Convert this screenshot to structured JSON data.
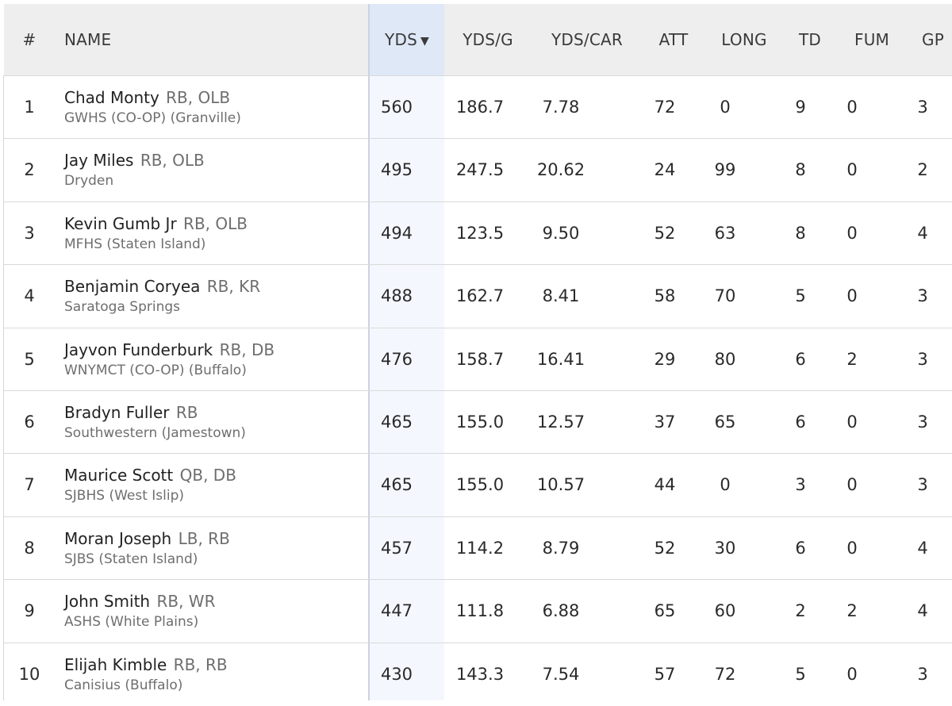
{
  "table": {
    "columns": {
      "rank": "#",
      "name": "NAME",
      "yds": "YDS",
      "yds_sort_icon": "▼",
      "yds_per_game": "YDS/G",
      "yds_per_carry": "YDS/CAR",
      "att": "ATT",
      "long": "LONG",
      "td": "TD",
      "fum": "FUM",
      "gp": "GP"
    },
    "sort": {
      "column": "YDS",
      "direction": "descending",
      "icon": "triangle-down-icon"
    },
    "colors": {
      "header_bg": "#eeeeee",
      "sorted_column_bg": "#f4f8fe",
      "sorted_header_bg": "#dfe8f7",
      "secondary_text": "#6e6e6e"
    },
    "rows": [
      {
        "rank": "1",
        "name": "Chad Monty",
        "positions": "RB, OLB",
        "school": "GWHS (CO-OP) (Granville)",
        "yds": "560",
        "yds_g": "186.7",
        "yds_car": "7.78",
        "att": "72",
        "long": "0",
        "td": "9",
        "fum": "0",
        "gp": "3"
      },
      {
        "rank": "2",
        "name": "Jay Miles",
        "positions": "RB, OLB",
        "school": "Dryden",
        "yds": "495",
        "yds_g": "247.5",
        "yds_car": "20.62",
        "att": "24",
        "long": "99",
        "td": "8",
        "fum": "0",
        "gp": "2"
      },
      {
        "rank": "3",
        "name": "Kevin Gumb Jr",
        "positions": "RB, OLB",
        "school": "MFHS (Staten Island)",
        "yds": "494",
        "yds_g": "123.5",
        "yds_car": "9.50",
        "att": "52",
        "long": "63",
        "td": "8",
        "fum": "0",
        "gp": "4"
      },
      {
        "rank": "4",
        "name": "Benjamin Coryea",
        "positions": "RB, KR",
        "school": "Saratoga Springs",
        "yds": "488",
        "yds_g": "162.7",
        "yds_car": "8.41",
        "att": "58",
        "long": "70",
        "td": "5",
        "fum": "0",
        "gp": "3"
      },
      {
        "rank": "5",
        "name": "Jayvon Funderburk",
        "positions": "RB, DB",
        "school": "WNYMCT (CO-OP) (Buffalo)",
        "yds": "476",
        "yds_g": "158.7",
        "yds_car": "16.41",
        "att": "29",
        "long": "80",
        "td": "6",
        "fum": "2",
        "gp": "3"
      },
      {
        "rank": "6",
        "name": "Bradyn Fuller",
        "positions": "RB",
        "school": "Southwestern (Jamestown)",
        "yds": "465",
        "yds_g": "155.0",
        "yds_car": "12.57",
        "att": "37",
        "long": "65",
        "td": "6",
        "fum": "0",
        "gp": "3"
      },
      {
        "rank": "7",
        "name": "Maurice Scott",
        "positions": "QB, DB",
        "school": "SJBHS (West Islip)",
        "yds": "465",
        "yds_g": "155.0",
        "yds_car": "10.57",
        "att": "44",
        "long": "0",
        "td": "3",
        "fum": "0",
        "gp": "3"
      },
      {
        "rank": "8",
        "name": "Moran Joseph",
        "positions": "LB, RB",
        "school": "SJBS (Staten Island)",
        "yds": "457",
        "yds_g": "114.2",
        "yds_car": "8.79",
        "att": "52",
        "long": "30",
        "td": "6",
        "fum": "0",
        "gp": "4"
      },
      {
        "rank": "9",
        "name": "John Smith",
        "positions": "RB, WR",
        "school": "ASHS (White Plains)",
        "yds": "447",
        "yds_g": "111.8",
        "yds_car": "6.88",
        "att": "65",
        "long": "60",
        "td": "2",
        "fum": "2",
        "gp": "4"
      },
      {
        "rank": "10",
        "name": "Elijah Kimble",
        "positions": "RB, RB",
        "school": "Canisius (Buffalo)",
        "yds": "430",
        "yds_g": "143.3",
        "yds_car": "7.54",
        "att": "57",
        "long": "72",
        "td": "5",
        "fum": "0",
        "gp": "3"
      }
    ]
  }
}
